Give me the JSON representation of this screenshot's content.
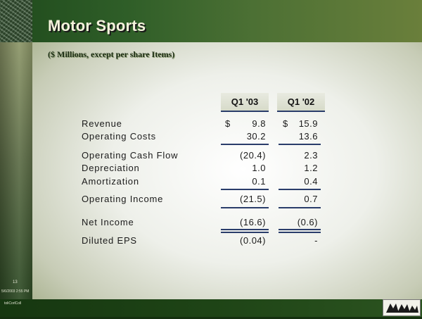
{
  "slide": {
    "title": "Motor Sports",
    "subtitle": "($ Millions, except per share Items)",
    "columns": [
      "Q1 '03",
      "Q1 '02"
    ],
    "currency_symbol": "$",
    "rows": [
      {
        "label": "Revenue",
        "q1_03": "9.8",
        "q1_02": "15.9"
      },
      {
        "label": "Operating Costs",
        "q1_03": "30.2",
        "q1_02": "13.6"
      },
      {
        "label": "Operating Cash Flow",
        "q1_03": "(20.4)",
        "q1_02": "2.3"
      },
      {
        "label": "Depreciation",
        "q1_03": "1.0",
        "q1_02": "1.2"
      },
      {
        "label": "Amortization",
        "q1_03": "0.1",
        "q1_02": "0.4"
      },
      {
        "label": "Operating Income",
        "q1_03": "(21.5)",
        "q1_02": "0.7"
      },
      {
        "label": "Net Income",
        "q1_03": "(16.6)",
        "q1_02": "(0.6)"
      },
      {
        "label": "Diluted EPS",
        "q1_03": "(0.04)",
        "q1_02": "-"
      }
    ],
    "page_number": "13",
    "timestamp": "5/6/2003 2:55 PM",
    "footer_text": "toliCorlColl"
  },
  "colors": {
    "header_green": "#2f5e28",
    "rule_blue": "#2a3d6b",
    "title_color": "#f5f3dc"
  }
}
